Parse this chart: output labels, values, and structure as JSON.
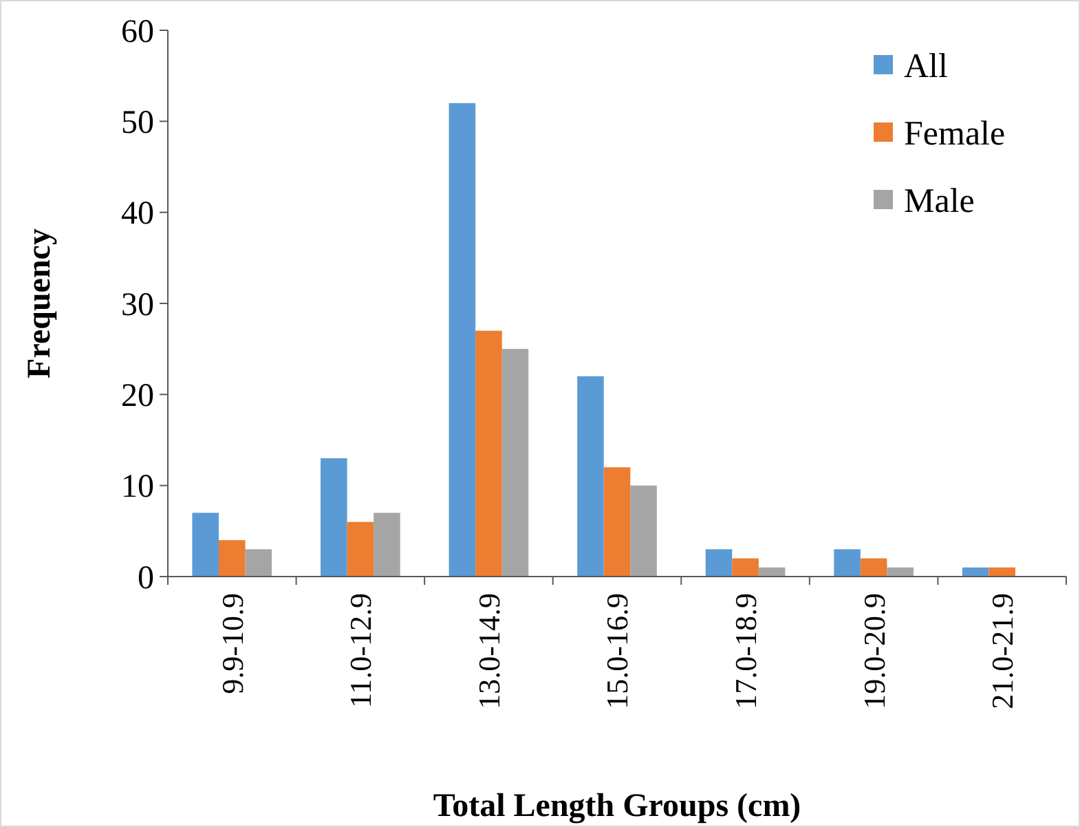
{
  "chart_data": {
    "type": "bar",
    "xlabel": "Total Length Groups (cm)",
    "ylabel": "Frequency",
    "categories": [
      "9.9-10.9",
      "11.0-12.9",
      "13.0-14.9",
      "15.0-16.9",
      "17.0-18.9",
      "19.0-20.9",
      "21.0-21.9"
    ],
    "series": [
      {
        "name": "All",
        "color": "#5b9bd5",
        "values": [
          7,
          13,
          52,
          22,
          3,
          3,
          1
        ]
      },
      {
        "name": "Female",
        "color": "#ed7d31",
        "values": [
          4,
          6,
          27,
          12,
          2,
          2,
          1
        ]
      },
      {
        "name": "Male",
        "color": "#a5a5a5",
        "values": [
          3,
          7,
          25,
          10,
          1,
          1,
          0
        ]
      }
    ],
    "ylim": [
      0,
      60
    ],
    "yticks": [
      0,
      10,
      20,
      30,
      40,
      50,
      60
    ],
    "grid": false,
    "legend": "top right"
  }
}
